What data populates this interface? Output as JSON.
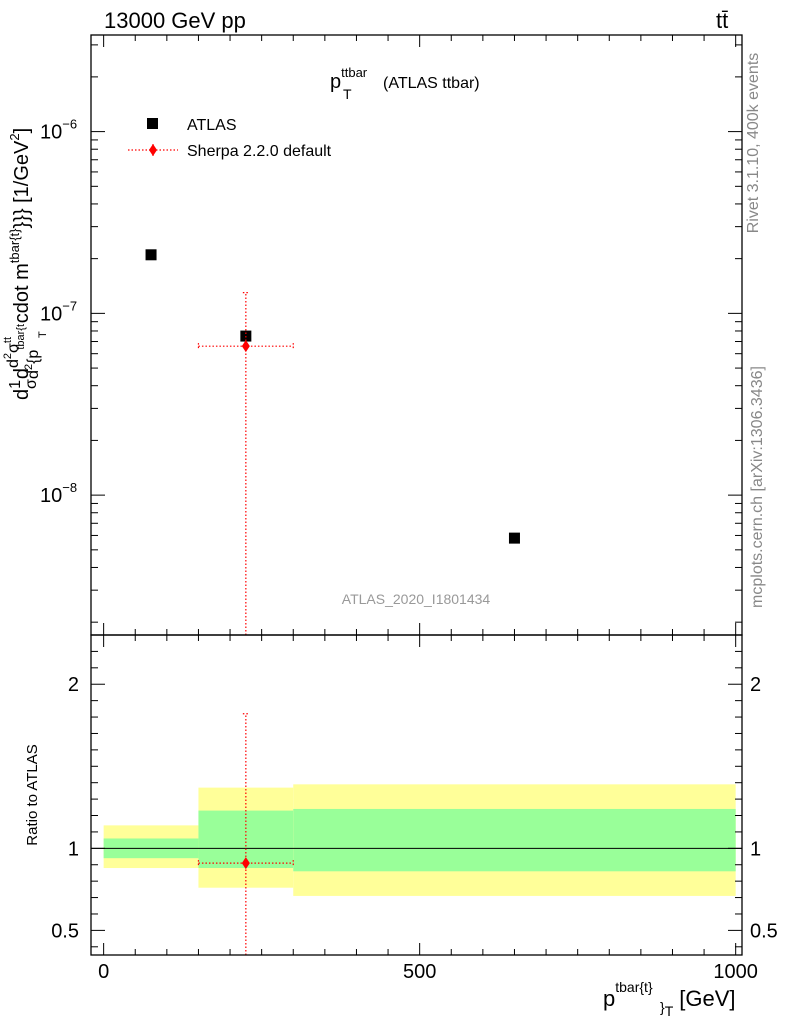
{
  "header": {
    "energy": "13000 GeV pp",
    "process": "tt̄"
  },
  "sidebar": {
    "rivet": "Rivet 3.1.10,  400k events",
    "mcplots": "mcplots.cern.ch [arXiv:1306.3436]"
  },
  "chart_data": [
    {
      "type": "scatter",
      "panel": "main",
      "title": "p_T^{ttbar} (ATLAS ttbar)",
      "title_main": "p",
      "title_sup": "ttbar",
      "title_sub": "T",
      "title_rest": "(ATLAS ttbar)",
      "ylabel": "d\\frac{1}{\\sigma}d\\frac{d^2\\sigma^{tt}}{d^2{p_T^{tbar{t}}}} cdot m^{tbar{t}}}} [1/GeV^2]",
      "ylabel_parts": [
        "d",
        "1",
        "σ",
        "d",
        "d",
        "2",
        "σ",
        "tt",
        "d",
        "2",
        "{p",
        "T",
        "tbar{t",
        "cdot m",
        "tbar{t}",
        "}}} [1/GeV",
        "2",
        "]"
      ],
      "yscale": "log",
      "ylim": [
        1.7e-09,
        3.4e-06
      ],
      "yticks": [
        {
          "value": 1e-08,
          "base": "10",
          "exp": "−8"
        },
        {
          "value": 1e-07,
          "base": "10",
          "exp": "−7"
        },
        {
          "value": 1e-06,
          "base": "10",
          "exp": "−6"
        }
      ],
      "xlim": [
        -20,
        1010
      ],
      "watermark": "ATLAS_2020_I1801434",
      "legend": [
        {
          "label": "ATLAS",
          "marker": "square",
          "color": "#000000"
        },
        {
          "label": "Sherpa 2.2.0 default",
          "marker": "diamond",
          "color": "#ff0000",
          "linestyle": "dotted"
        }
      ],
      "series": [
        {
          "name": "ATLAS",
          "points": [
            {
              "x": 75,
              "y": 2.1e-07
            },
            {
              "x": 225,
              "y": 7.5e-08
            },
            {
              "x": 650,
              "y": 5.8e-09
            }
          ]
        },
        {
          "name": "Sherpa 2.2.0 default",
          "points": [
            {
              "x": 225,
              "y": 6.6e-08,
              "xerr": [
                150,
                300
              ],
              "yerr": [
                1.7e-09,
                1.3e-07
              ]
            }
          ]
        }
      ]
    },
    {
      "type": "scatter",
      "panel": "ratio",
      "ylabel": "Ratio to ATLAS",
      "xlabel_main": "p",
      "xlabel_sup": "tbar{t}",
      "xlabel_sub": "}",
      "xlabel_sub2": "T",
      "xlabel_rest": "[GeV]",
      "xlim": [
        -20,
        1010
      ],
      "ylim": [
        0.35,
        2.3
      ],
      "xticks": [
        {
          "value": 0,
          "label": "0"
        },
        {
          "value": 500,
          "label": "500"
        },
        {
          "value": 1000,
          "label": "1000"
        }
      ],
      "yticks": [
        {
          "value": 0.5,
          "label": "0.5"
        },
        {
          "value": 1,
          "label": "1"
        },
        {
          "value": 2,
          "label": "2"
        }
      ],
      "reference_line": 1,
      "bands": [
        {
          "x0": 0,
          "x1": 150,
          "yellow": [
            0.88,
            1.14
          ],
          "green": [
            0.94,
            1.06
          ]
        },
        {
          "x0": 150,
          "x1": 300,
          "yellow": [
            0.76,
            1.37
          ],
          "green": [
            0.88,
            1.23
          ]
        },
        {
          "x0": 300,
          "x1": 1000,
          "yellow": [
            0.71,
            1.39
          ],
          "green": [
            0.86,
            1.24
          ]
        }
      ],
      "band_colors": {
        "yellow": "#ffff99",
        "green": "#99ff99"
      },
      "series": [
        {
          "name": "Sherpa 2.2.0 default",
          "points": [
            {
              "x": 225,
              "y": 0.91,
              "xerr": [
                150,
                300
              ],
              "yerr": [
                0.35,
                1.82
              ]
            }
          ]
        }
      ]
    }
  ]
}
